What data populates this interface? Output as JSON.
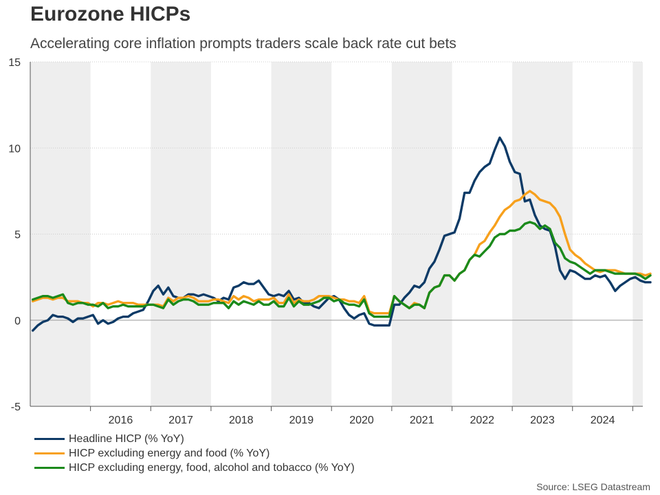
{
  "title": "Eurozone HICPs",
  "subtitle": "Accelerating core inflation prompts traders scale back rate cut bets",
  "source": "Source: LSEG Datastream",
  "chart_data": {
    "type": "line",
    "x_axis": {
      "type": "date",
      "start": "2015-01",
      "end": "2025-02",
      "tick_labels": [
        "2016",
        "2017",
        "2018",
        "2019",
        "2020",
        "2021",
        "2022",
        "2023",
        "2024"
      ]
    },
    "ylim": [
      -5,
      15
    ],
    "y_ticks": [
      -5,
      0,
      5,
      10,
      15
    ],
    "grid": "horizontal dotted",
    "shaded_years": [
      2015,
      2017,
      2019,
      2021,
      2023,
      2025
    ],
    "legend_position": "bottom-left",
    "colors": {
      "shade": "#eeeeee",
      "zero_line": "#999999",
      "grid": "#cccccc"
    },
    "series": [
      {
        "name": "Headline HICP (% YoY)",
        "color": "#0d3a66",
        "start": "2015-01",
        "values": [
          -0.6,
          -0.3,
          -0.1,
          0.0,
          0.3,
          0.2,
          0.2,
          0.1,
          -0.1,
          0.1,
          0.1,
          0.2,
          0.3,
          -0.2,
          0.0,
          -0.2,
          -0.1,
          0.1,
          0.2,
          0.2,
          0.4,
          0.5,
          0.6,
          1.1,
          1.7,
          2.0,
          1.5,
          1.9,
          1.4,
          1.3,
          1.3,
          1.5,
          1.5,
          1.4,
          1.5,
          1.4,
          1.3,
          1.1,
          1.3,
          1.2,
          1.9,
          2.0,
          2.2,
          2.1,
          2.1,
          2.3,
          1.9,
          1.5,
          1.4,
          1.5,
          1.4,
          1.7,
          1.2,
          1.3,
          1.0,
          1.0,
          0.8,
          0.7,
          1.0,
          1.3,
          1.4,
          1.2,
          0.7,
          0.3,
          0.1,
          0.3,
          0.4,
          -0.2,
          -0.3,
          -0.3,
          -0.3,
          -0.3,
          0.9,
          0.9,
          1.3,
          1.6,
          2.0,
          1.9,
          2.2,
          3.0,
          3.4,
          4.1,
          4.9,
          5.0,
          5.1,
          5.9,
          7.4,
          7.4,
          8.1,
          8.6,
          8.9,
          9.1,
          9.9,
          10.6,
          10.1,
          9.2,
          8.6,
          8.5,
          6.9,
          7.0,
          6.1,
          5.5,
          5.3,
          5.2,
          4.3,
          2.9,
          2.4,
          2.9,
          2.8,
          2.6,
          2.4,
          2.4,
          2.6,
          2.5,
          2.6,
          2.2,
          1.7,
          2.0,
          2.2,
          2.4,
          2.5,
          2.3,
          2.2,
          2.2
        ]
      },
      {
        "name": "HICP excluding energy and food (% YoY)",
        "color": "#f7a01c",
        "start": "2015-01",
        "values": [
          1.1,
          1.2,
          1.3,
          1.3,
          1.2,
          1.3,
          1.3,
          1.1,
          1.1,
          1.1,
          1.0,
          1.0,
          0.8,
          1.0,
          1.0,
          0.9,
          1.0,
          1.1,
          1.0,
          1.0,
          1.0,
          0.9,
          0.9,
          0.9,
          0.9,
          0.9,
          0.8,
          1.3,
          1.1,
          1.3,
          1.3,
          1.4,
          1.3,
          1.1,
          1.1,
          1.1,
          1.2,
          1.2,
          1.1,
          1.0,
          1.4,
          1.2,
          1.4,
          1.3,
          1.1,
          1.2,
          1.2,
          1.2,
          1.3,
          1.0,
          1.0,
          1.5,
          1.0,
          1.2,
          1.1,
          1.1,
          1.2,
          1.4,
          1.4,
          1.4,
          1.3,
          1.2,
          1.2,
          1.1,
          1.1,
          1.0,
          1.4,
          0.5,
          0.4,
          0.4,
          0.4,
          0.4,
          1.4,
          1.1,
          0.9,
          0.7,
          1.0,
          0.9,
          0.7,
          1.6,
          1.9,
          2.0,
          2.6,
          2.6,
          2.3,
          2.7,
          2.9,
          3.5,
          3.8,
          4.4,
          4.6,
          5.1,
          5.5,
          6.0,
          6.4,
          6.6,
          6.9,
          7.0,
          7.3,
          7.5,
          7.3,
          7.0,
          6.9,
          6.8,
          6.5,
          6.0,
          5.0,
          4.1,
          3.8,
          3.6,
          3.3,
          3.1,
          2.9,
          2.8,
          2.9,
          2.9,
          2.9,
          2.8,
          2.7,
          2.7,
          2.7,
          2.7,
          2.6,
          2.7
        ]
      },
      {
        "name": "HICP excluding energy, food, alcohol and tobacco (% YoY)",
        "color": "#1b8a1b",
        "start": "2015-01",
        "values": [
          1.2,
          1.3,
          1.4,
          1.4,
          1.3,
          1.4,
          1.5,
          1.0,
          0.9,
          1.0,
          1.0,
          0.9,
          0.9,
          0.8,
          1.0,
          0.7,
          0.8,
          0.8,
          0.9,
          0.8,
          0.8,
          0.8,
          0.8,
          0.9,
          0.9,
          0.8,
          0.7,
          1.2,
          0.9,
          1.1,
          1.2,
          1.2,
          1.1,
          0.9,
          0.9,
          0.9,
          1.0,
          1.0,
          1.0,
          0.7,
          1.1,
          0.9,
          1.1,
          1.0,
          0.9,
          1.1,
          0.9,
          0.9,
          1.1,
          0.8,
          0.8,
          1.3,
          0.8,
          1.1,
          0.9,
          0.9,
          1.0,
          1.1,
          1.3,
          1.3,
          1.1,
          1.2,
          1.0,
          0.9,
          0.9,
          0.8,
          1.2,
          0.4,
          0.2,
          0.2,
          0.2,
          0.2,
          1.4,
          1.1,
          0.9,
          0.7,
          0.9,
          0.9,
          0.7,
          1.6,
          1.9,
          2.0,
          2.6,
          2.6,
          2.3,
          2.7,
          2.9,
          3.5,
          3.8,
          3.7,
          4.0,
          4.3,
          4.8,
          5.0,
          5.0,
          5.2,
          5.2,
          5.3,
          5.6,
          5.7,
          5.6,
          5.3,
          5.5,
          5.3,
          4.5,
          4.2,
          3.6,
          3.4,
          3.3,
          3.1,
          2.9,
          2.7,
          2.9,
          2.9,
          2.9,
          2.8,
          2.7,
          2.7,
          2.7,
          2.7,
          2.7,
          2.6,
          2.4,
          2.6
        ]
      }
    ]
  }
}
